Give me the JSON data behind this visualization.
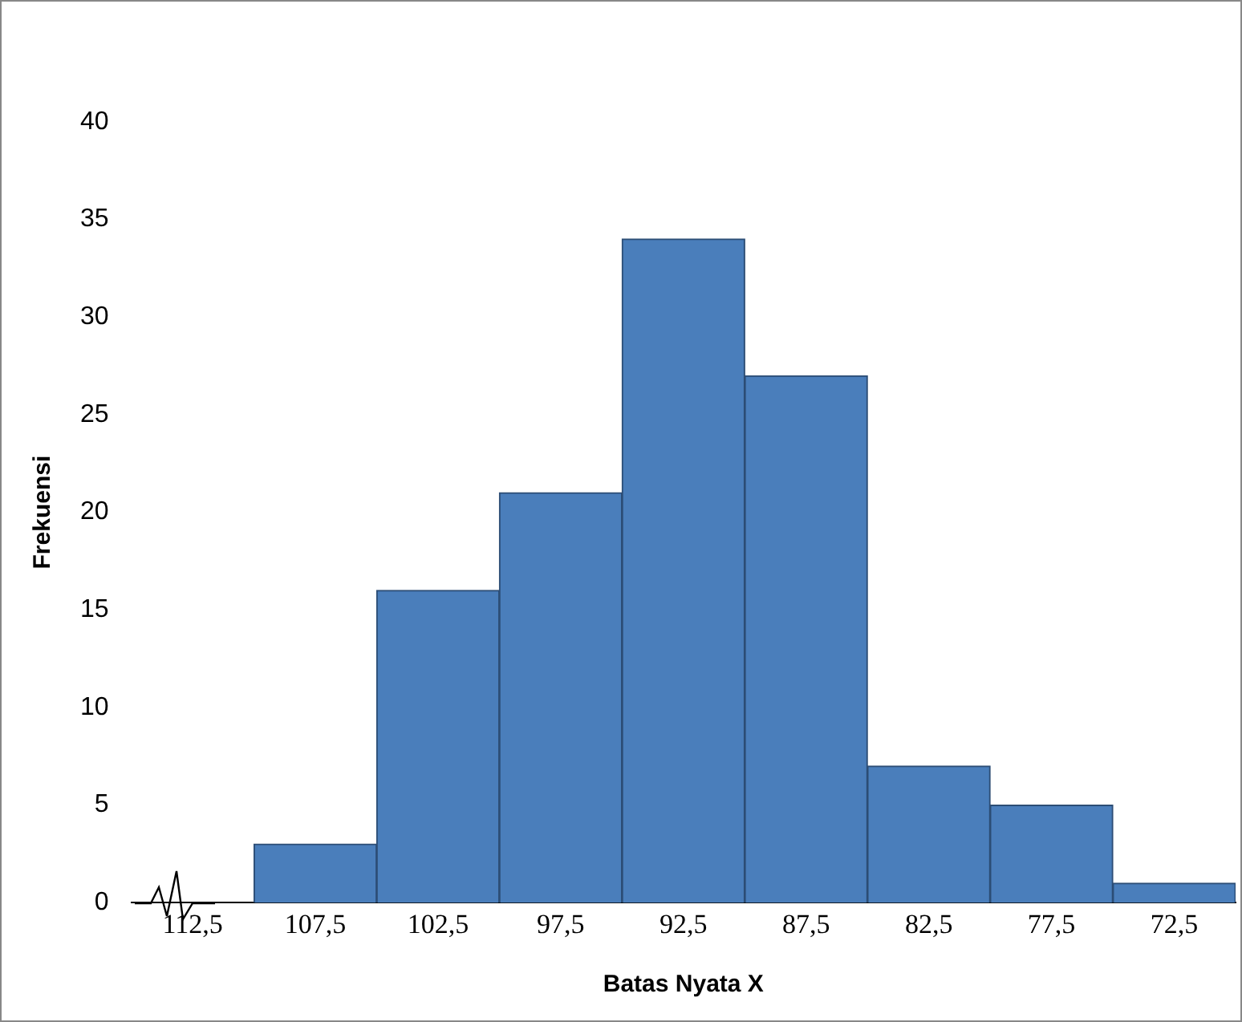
{
  "chart_data": {
    "type": "bar",
    "xlabel": "Batas Nyata X",
    "ylabel": "Frekuensi",
    "categories": [
      "112,5",
      "107,5",
      "102,5",
      "97,5",
      "92,5",
      "87,5",
      "82,5",
      "77,5",
      "72,5"
    ],
    "values": [
      null,
      3,
      16,
      21,
      34,
      27,
      7,
      5,
      1
    ],
    "color": "#4a7ebb",
    "ylim": [
      0,
      40
    ],
    "yticks": [
      0,
      5,
      10,
      15,
      20,
      25,
      30,
      35,
      40
    ]
  }
}
